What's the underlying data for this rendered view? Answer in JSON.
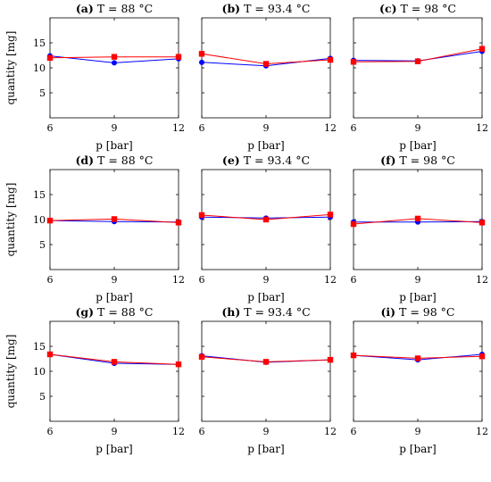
{
  "figure": {
    "xlabel": "p [bar]",
    "ylabel": "quantity [mg]"
  },
  "chart_data": [
    {
      "type": "line",
      "id": "a",
      "letter": "(a)",
      "title": "T = 88 °C",
      "x": [
        6,
        9,
        12
      ],
      "xlim": [
        6,
        12
      ],
      "xticks": [
        "6",
        "9",
        "12"
      ],
      "ylim": [
        0,
        20
      ],
      "yticks": [
        "5",
        "10",
        "15"
      ],
      "show_y": true,
      "series": [
        {
          "color": "#0000ff",
          "marker": "circle",
          "values": [
            12.4,
            11.0,
            11.8
          ]
        },
        {
          "color": "#ff0000",
          "marker": "square",
          "values": [
            12.0,
            12.2,
            12.2
          ]
        }
      ]
    },
    {
      "type": "line",
      "id": "b",
      "letter": "(b)",
      "title": "T = 93.4 °C",
      "x": [
        6,
        9,
        12
      ],
      "xlim": [
        6,
        12
      ],
      "xticks": [
        "6",
        "9",
        "12"
      ],
      "ylim": [
        0,
        20
      ],
      "yticks": [
        "5",
        "10",
        "15"
      ],
      "show_y": false,
      "series": [
        {
          "color": "#0000ff",
          "marker": "circle",
          "values": [
            11.1,
            10.4,
            11.9
          ]
        },
        {
          "color": "#ff0000",
          "marker": "square",
          "values": [
            12.8,
            10.8,
            11.6
          ]
        }
      ]
    },
    {
      "type": "line",
      "id": "c",
      "letter": "(c)",
      "title": "T = 98 °C",
      "x": [
        6,
        9,
        12
      ],
      "xlim": [
        6,
        12
      ],
      "xticks": [
        "6",
        "9",
        "12"
      ],
      "ylim": [
        0,
        20
      ],
      "yticks": [
        "5",
        "10",
        "15"
      ],
      "show_y": false,
      "series": [
        {
          "color": "#0000ff",
          "marker": "circle",
          "values": [
            11.5,
            11.4,
            13.3
          ]
        },
        {
          "color": "#ff0000",
          "marker": "square",
          "values": [
            11.2,
            11.3,
            13.8
          ]
        }
      ]
    },
    {
      "type": "line",
      "id": "d",
      "letter": "(d)",
      "title": "T = 88 °C",
      "x": [
        6,
        9,
        12
      ],
      "xlim": [
        6,
        12
      ],
      "xticks": [
        "6",
        "9",
        "12"
      ],
      "ylim": [
        0,
        20
      ],
      "yticks": [
        "5",
        "10",
        "15"
      ],
      "show_y": true,
      "series": [
        {
          "color": "#0000ff",
          "marker": "circle",
          "values": [
            9.8,
            9.6,
            9.5
          ]
        },
        {
          "color": "#ff0000",
          "marker": "square",
          "values": [
            9.8,
            10.1,
            9.4
          ]
        }
      ]
    },
    {
      "type": "line",
      "id": "e",
      "letter": "(e)",
      "title": "T = 93.4 °C",
      "x": [
        6,
        9,
        12
      ],
      "xlim": [
        6,
        12
      ],
      "xticks": [
        "6",
        "9",
        "12"
      ],
      "ylim": [
        0,
        20
      ],
      "yticks": [
        "5",
        "10",
        "15"
      ],
      "show_y": false,
      "series": [
        {
          "color": "#0000ff",
          "marker": "circle",
          "values": [
            10.5,
            10.3,
            10.5
          ]
        },
        {
          "color": "#ff0000",
          "marker": "square",
          "values": [
            10.9,
            10.0,
            11.0
          ]
        }
      ]
    },
    {
      "type": "line",
      "id": "f",
      "letter": "(f)",
      "title": "T = 98 °C",
      "x": [
        6,
        9,
        12
      ],
      "xlim": [
        6,
        12
      ],
      "xticks": [
        "6",
        "9",
        "12"
      ],
      "ylim": [
        0,
        20
      ],
      "yticks": [
        "5",
        "10",
        "15"
      ],
      "show_y": false,
      "series": [
        {
          "color": "#0000ff",
          "marker": "circle",
          "values": [
            9.5,
            9.5,
            9.6
          ]
        },
        {
          "color": "#ff0000",
          "marker": "square",
          "values": [
            9.1,
            10.2,
            9.4
          ]
        }
      ]
    },
    {
      "type": "line",
      "id": "g",
      "letter": "(g)",
      "title": "T = 88 °C",
      "x": [
        6,
        9,
        12
      ],
      "xlim": [
        6,
        12
      ],
      "xticks": [
        "6",
        "9",
        "12"
      ],
      "ylim": [
        0,
        20
      ],
      "yticks": [
        "5",
        "10",
        "15"
      ],
      "show_y": true,
      "series": [
        {
          "color": "#0000ff",
          "marker": "circle",
          "values": [
            13.4,
            11.6,
            11.4
          ]
        },
        {
          "color": "#ff0000",
          "marker": "square",
          "values": [
            13.4,
            11.9,
            11.4
          ]
        }
      ]
    },
    {
      "type": "line",
      "id": "h",
      "letter": "(h)",
      "title": "T = 93.4 °C",
      "x": [
        6,
        9,
        12
      ],
      "xlim": [
        6,
        12
      ],
      "xticks": [
        "6",
        "9",
        "12"
      ],
      "ylim": [
        0,
        20
      ],
      "yticks": [
        "5",
        "10",
        "15"
      ],
      "show_y": false,
      "series": [
        {
          "color": "#0000ff",
          "marker": "circle",
          "values": [
            13.1,
            11.8,
            12.3
          ]
        },
        {
          "color": "#ff0000",
          "marker": "square",
          "values": [
            12.9,
            11.9,
            12.3
          ]
        }
      ]
    },
    {
      "type": "line",
      "id": "i",
      "letter": "(i)",
      "title": "T = 98 °C",
      "x": [
        6,
        9,
        12
      ],
      "xlim": [
        6,
        12
      ],
      "xticks": [
        "6",
        "9",
        "12"
      ],
      "ylim": [
        0,
        20
      ],
      "yticks": [
        "5",
        "10",
        "15"
      ],
      "show_y": false,
      "series": [
        {
          "color": "#0000ff",
          "marker": "circle",
          "values": [
            13.2,
            12.3,
            13.4
          ]
        },
        {
          "color": "#ff0000",
          "marker": "square",
          "values": [
            13.2,
            12.6,
            13.0
          ]
        }
      ]
    }
  ]
}
